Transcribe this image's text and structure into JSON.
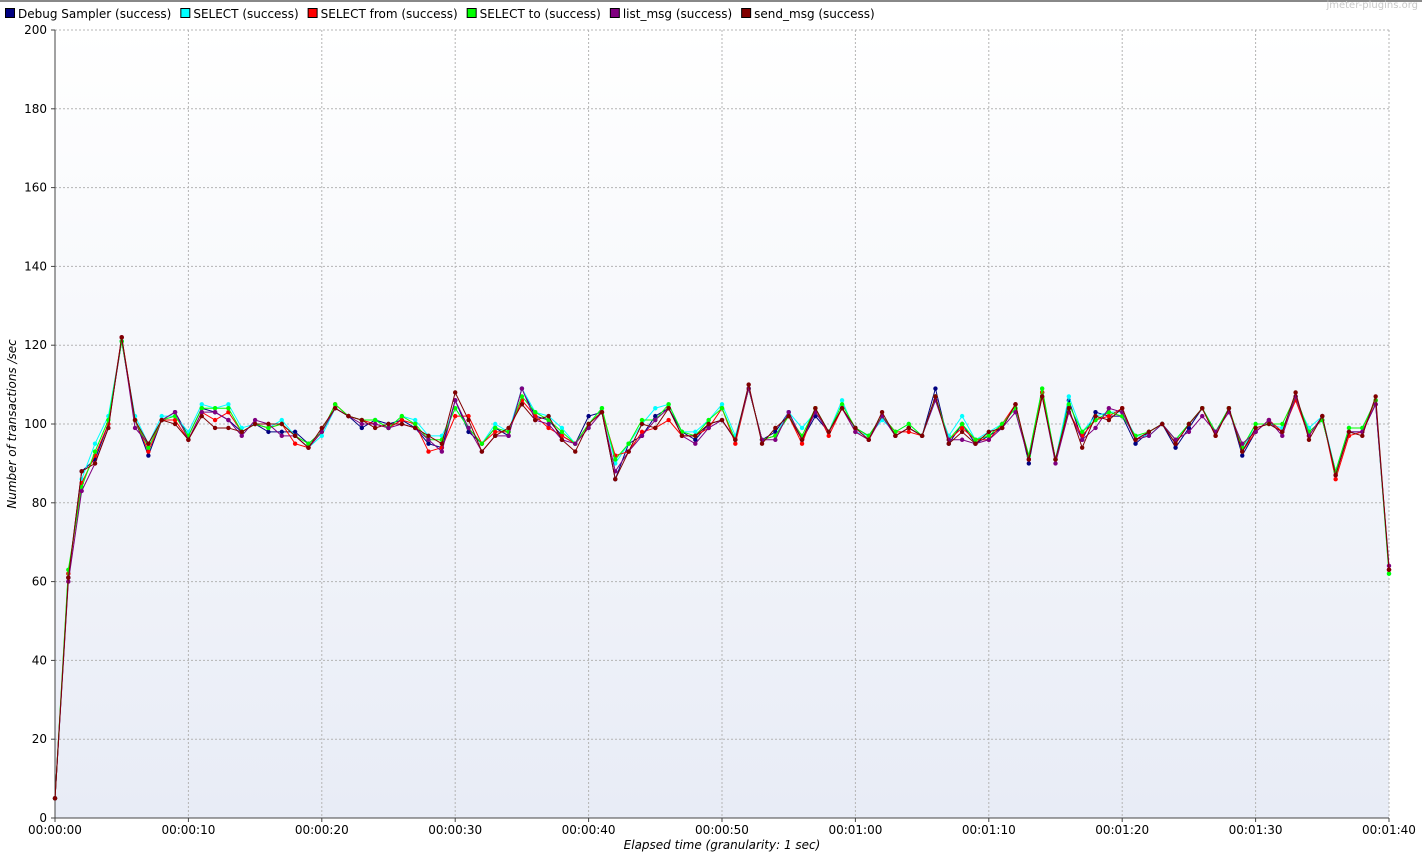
{
  "watermark": "jmeter-plugins.org",
  "chart_data": {
    "type": "line",
    "title": "",
    "xlabel": "Elapsed time (granularity: 1 sec)",
    "ylabel": "Number of transactions /sec",
    "xlim": [
      0,
      100
    ],
    "ylim": [
      0,
      200
    ],
    "yticks": [
      "0",
      "20",
      "40",
      "60",
      "80",
      "100",
      "120",
      "140",
      "160",
      "180",
      "200"
    ],
    "xticks": [
      "00:00:00",
      "00:00:10",
      "00:00:20",
      "00:00:30",
      "00:00:40",
      "00:00:50",
      "00:01:00",
      "00:01:10",
      "00:01:20",
      "00:01:30",
      "00:01:40"
    ],
    "grid": true,
    "legend_position": "top",
    "x_unit": "seconds",
    "series": [
      {
        "name": "Debug Sampler (success)",
        "color": "#000080",
        "values": [
          5,
          61,
          88,
          91,
          100,
          121,
          101,
          92,
          101,
          103,
          97,
          104,
          103,
          101,
          98,
          100,
          98,
          98,
          98,
          95,
          98,
          104,
          102,
          99,
          101,
          100,
          101,
          99,
          95,
          94,
          106,
          98,
          95,
          99,
          97,
          109,
          102,
          101,
          97,
          95,
          102,
          103,
          86,
          95,
          97,
          102,
          104,
          98,
          96,
          100,
          101,
          96,
          109,
          96,
          98,
          103,
          96,
          102,
          98,
          104,
          99,
          97,
          102,
          97,
          99,
          97,
          109,
          95,
          100,
          95,
          97,
          99,
          105,
          90,
          108,
          91,
          106,
          96,
          103,
          102,
          102,
          95,
          98,
          100,
          94,
          99,
          104,
          98,
          104,
          92,
          98,
          101,
          98,
          107,
          98,
          101,
          88,
          98,
          98,
          105,
          63
        ]
      },
      {
        "name": "SELECT  (success)",
        "color": "#00ffff",
        "values": [
          5,
          62,
          86,
          95,
          102,
          121,
          102,
          95,
          102,
          102,
          98,
          105,
          104,
          105,
          99,
          100,
          99,
          101,
          97,
          94,
          97,
          104,
          102,
          101,
          101,
          99,
          102,
          101,
          97,
          97,
          104,
          99,
          95,
          100,
          98,
          109,
          103,
          102,
          99,
          95,
          100,
          104,
          90,
          95,
          100,
          104,
          105,
          98,
          98,
          101,
          105,
          97,
          109,
          96,
          97,
          103,
          99,
          103,
          98,
          106,
          98,
          97,
          101,
          98,
          100,
          97,
          106,
          97,
          102,
          96,
          98,
          100,
          104,
          92,
          109,
          91,
          107,
          98,
          102,
          103,
          103,
          97,
          97,
          100,
          96,
          100,
          104,
          98,
          104,
          93,
          100,
          100,
          99,
          106,
          99,
          102,
          88,
          99,
          99,
          106,
          62
        ]
      },
      {
        "name": "SELECT from (success)",
        "color": "#ff0000",
        "values": [
          5,
          62,
          85,
          92,
          100,
          122,
          101,
          93,
          101,
          101,
          96,
          103,
          101,
          103,
          98,
          100,
          99,
          100,
          95,
          94,
          98,
          105,
          102,
          101,
          100,
          99,
          101,
          100,
          93,
          94,
          102,
          102,
          95,
          98,
          98,
          106,
          102,
          99,
          97,
          95,
          100,
          103,
          92,
          93,
          98,
          99,
          101,
          97,
          97,
          99,
          104,
          95,
          109,
          96,
          97,
          102,
          95,
          104,
          97,
          104,
          98,
          96,
          102,
          98,
          98,
          97,
          107,
          96,
          99,
          96,
          96,
          100,
          105,
          91,
          108,
          91,
          103,
          97,
          101,
          102,
          104,
          96,
          98,
          100,
          95,
          100,
          104,
          97,
          104,
          93,
          98,
          101,
          98,
          106,
          97,
          102,
          86,
          97,
          98,
          106,
          63
        ]
      },
      {
        "name": "SELECT to (success)",
        "color": "#00ff00",
        "values": [
          5,
          63,
          84,
          93,
          101,
          121,
          101,
          94,
          101,
          102,
          97,
          104,
          104,
          104,
          98,
          100,
          99,
          100,
          97,
          95,
          98,
          105,
          102,
          101,
          101,
          99,
          102,
          100,
          96,
          96,
          104,
          99,
          95,
          99,
          98,
          107,
          103,
          101,
          98,
          95,
          100,
          104,
          91,
          95,
          101,
          101,
          105,
          98,
          97,
          101,
          104,
          96,
          109,
          96,
          97,
          102,
          97,
          104,
          98,
          105,
          99,
          97,
          102,
          98,
          100,
          97,
          107,
          96,
          100,
          96,
          97,
          100,
          104,
          92,
          109,
          91,
          105,
          98,
          101,
          103,
          102,
          97,
          98,
          100,
          96,
          100,
          104,
          98,
          104,
          94,
          100,
          100,
          100,
          107,
          98,
          101,
          88,
          99,
          99,
          106,
          62
        ]
      },
      {
        "name": "list_msg (success)",
        "color": "#800080",
        "values": [
          5,
          60,
          83,
          90,
          99,
          122,
          99,
          95,
          101,
          103,
          96,
          103,
          103,
          101,
          97,
          101,
          100,
          97,
          97,
          94,
          98,
          104,
          102,
          100,
          100,
          99,
          100,
          99,
          96,
          93,
          106,
          99,
          93,
          97,
          97,
          109,
          101,
          100,
          96,
          95,
          99,
          103,
          88,
          93,
          97,
          101,
          104,
          97,
          95,
          99,
          101,
          96,
          109,
          96,
          96,
          103,
          96,
          103,
          98,
          104,
          98,
          96,
          102,
          97,
          99,
          97,
          106,
          96,
          96,
          95,
          96,
          99,
          103,
          91,
          107,
          90,
          103,
          96,
          99,
          104,
          103,
          96,
          97,
          100,
          96,
          98,
          102,
          98,
          103,
          95,
          98,
          101,
          97,
          107,
          97,
          102,
          87,
          98,
          98,
          105,
          64
        ]
      },
      {
        "name": "send_msg (success)",
        "color": "#800000",
        "values": [
          5,
          61,
          88,
          90,
          99,
          122,
          101,
          95,
          101,
          100,
          96,
          102,
          99,
          99,
          98,
          100,
          100,
          100,
          97,
          94,
          99,
          104,
          102,
          101,
          99,
          100,
          100,
          99,
          97,
          95,
          108,
          101,
          93,
          97,
          99,
          105,
          101,
          102,
          96,
          93,
          100,
          103,
          86,
          93,
          100,
          99,
          104,
          97,
          97,
          100,
          101,
          96,
          110,
          95,
          99,
          102,
          96,
          104,
          98,
          104,
          99,
          96,
          103,
          97,
          99,
          97,
          107,
          95,
          98,
          95,
          98,
          99,
          105,
          91,
          107,
          91,
          104,
          94,
          102,
          101,
          104,
          96,
          98,
          100,
          95,
          100,
          104,
          97,
          104,
          93,
          99,
          100,
          98,
          108,
          96,
          102,
          87,
          98,
          97,
          107,
          63
        ]
      }
    ]
  }
}
